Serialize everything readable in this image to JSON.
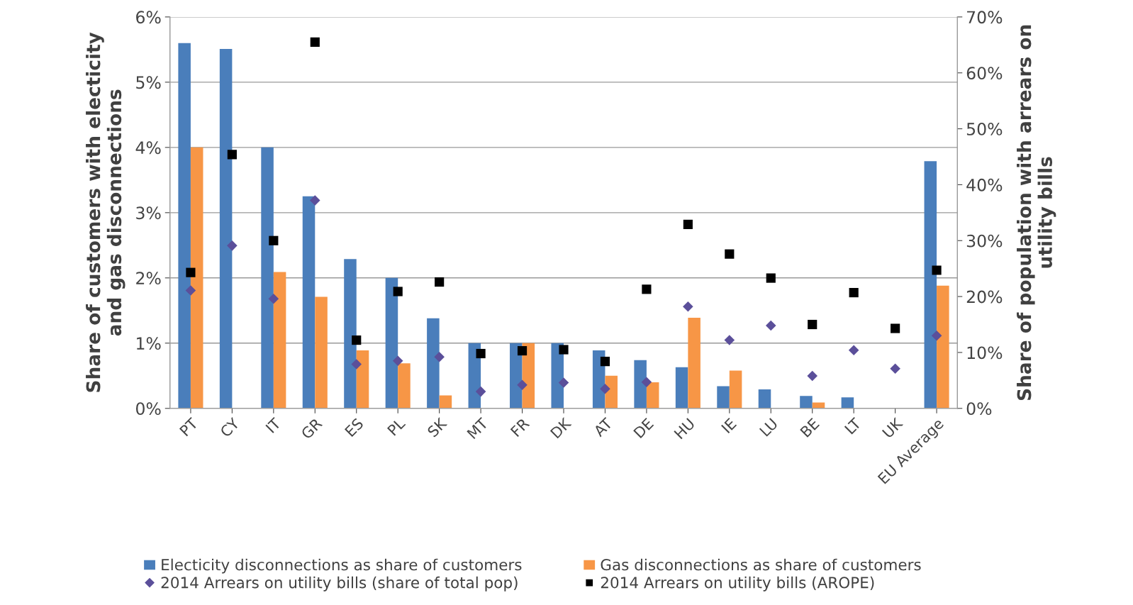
{
  "chart_data": {
    "type": "bar",
    "categories": [
      "PT",
      "CY",
      "IT",
      "GR",
      "ES",
      "PL",
      "SK",
      "MT",
      "FR",
      "DK",
      "AT",
      "DE",
      "HU",
      "IE",
      "LU",
      "BE",
      "LT",
      "UK",
      "EU Average"
    ],
    "ylabel": "Share of customers with electicity\nand gas disconnections",
    "y2label": "Share of population with arrears on\nutility bills",
    "series": [
      {
        "name": "Electicity disconnections as share of customers",
        "color": "#4a7ebb",
        "values": [
          5.6,
          5.51,
          4.0,
          3.25,
          2.29,
          2.0,
          1.38,
          1.0,
          1.0,
          1.0,
          0.89,
          0.74,
          0.63,
          0.34,
          0.29,
          0.19,
          0.17,
          null,
          3.79
        ]
      },
      {
        "name": "Gas disconnections as share of customers",
        "color": "#f79646",
        "values": [
          4.0,
          null,
          2.09,
          1.71,
          0.89,
          0.69,
          0.2,
          null,
          1.0,
          null,
          0.5,
          0.4,
          1.39,
          0.58,
          null,
          0.09,
          null,
          null,
          1.88
        ]
      },
      {
        "name": "2014 Arrears on utility bills (share of total pop)",
        "type": "scatter",
        "axis": "y2",
        "marker": "diamond",
        "color": "#5b4f9a",
        "values": [
          21.1,
          29.1,
          19.6,
          37.2,
          7.9,
          8.5,
          9.2,
          3.0,
          4.2,
          4.6,
          3.5,
          4.7,
          18.2,
          12.2,
          14.8,
          5.8,
          10.4,
          7.1,
          13.0
        ]
      },
      {
        "name": "2014 Arrears on utility bills (AROPE)",
        "type": "scatter",
        "axis": "y2",
        "marker": "square",
        "color": "#000000",
        "values": [
          24.3,
          45.4,
          30.0,
          65.5,
          12.2,
          20.9,
          22.6,
          9.8,
          10.3,
          10.5,
          8.4,
          21.3,
          32.9,
          27.6,
          23.3,
          15.0,
          20.7,
          14.3,
          24.7
        ]
      }
    ],
    "ylim": [
      0,
      6
    ],
    "yticks": [
      {
        "value": 0,
        "label": "0%"
      },
      {
        "value": 1,
        "label": "1%"
      },
      {
        "value": 2,
        "label": "2%"
      },
      {
        "value": 3,
        "label": "3%"
      },
      {
        "value": 4,
        "label": "4%"
      },
      {
        "value": 5,
        "label": "5%"
      },
      {
        "value": 6,
        "label": "6%"
      }
    ],
    "y2lim": [
      0,
      70
    ],
    "y2ticks": [
      {
        "value": 0,
        "label": "0%"
      },
      {
        "value": 10,
        "label": "10%"
      },
      {
        "value": 20,
        "label": "20%"
      },
      {
        "value": 30,
        "label": "30%"
      },
      {
        "value": 40,
        "label": "40%"
      },
      {
        "value": 50,
        "label": "50%"
      },
      {
        "value": 60,
        "label": "60%"
      },
      {
        "value": 70,
        "label": "70%"
      }
    ],
    "grid": "y",
    "legend": "bottom"
  }
}
